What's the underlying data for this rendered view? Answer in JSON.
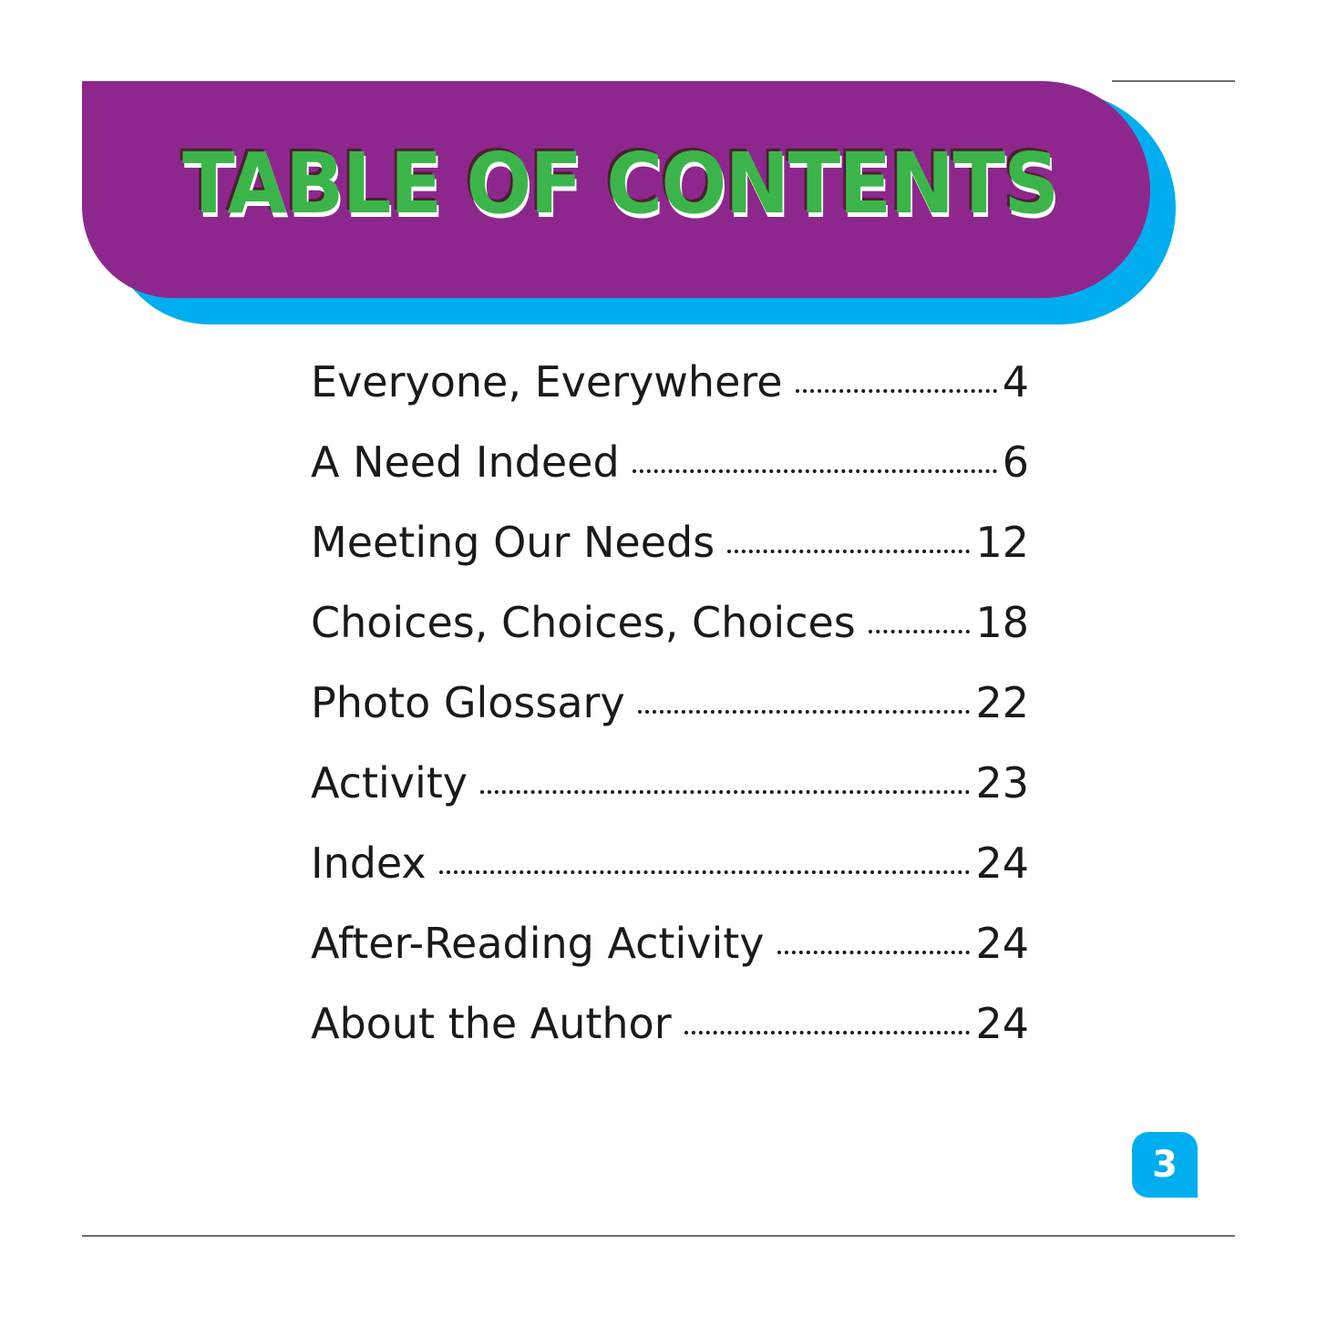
{
  "header": {
    "title": "TABLE OF CONTENTS"
  },
  "toc": [
    {
      "label": "Everyone, Everywhere",
      "page": "4"
    },
    {
      "label": "A Need Indeed",
      "page": "6"
    },
    {
      "label": "Meeting Our Needs",
      "page": "12"
    },
    {
      "label": "Choices, Choices, Choices",
      "page": "18"
    },
    {
      "label": "Photo Glossary",
      "page": "22"
    },
    {
      "label": "Activity",
      "page": "23"
    },
    {
      "label": "Index",
      "page": "24"
    },
    {
      "label": "After-Reading Activity",
      "page": "24"
    },
    {
      "label": "About the Author",
      "page": "24"
    }
  ],
  "footer": {
    "page_number": "3"
  },
  "colors": {
    "banner": "#8e278d",
    "banner_shadow": "#00aeef",
    "title": "#3bb54a",
    "badge": "#00aeef"
  }
}
